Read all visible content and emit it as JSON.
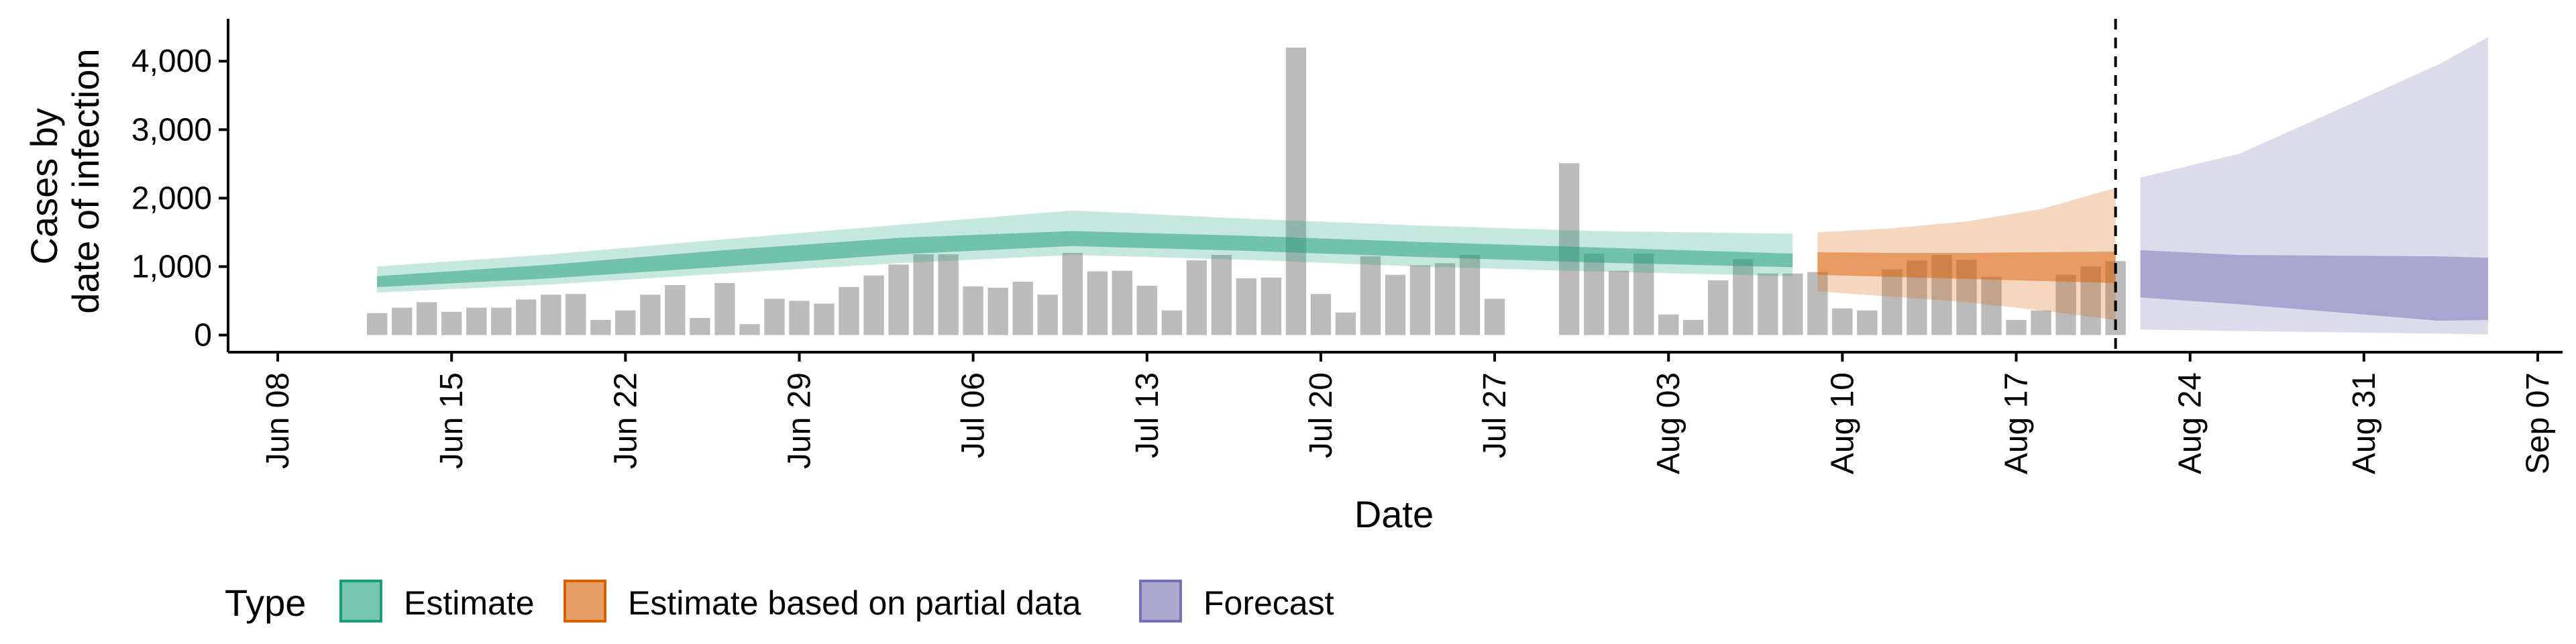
{
  "chart_data": {
    "type": "bar",
    "xlabel": "Date",
    "ylabel_lines": [
      "Cases by",
      "date of infection"
    ],
    "x_domain": [
      "2020-06-06",
      "2020-09-08"
    ],
    "ylim": [
      -250,
      4600
    ],
    "y_ticks": [
      {
        "value": 0,
        "label": "0"
      },
      {
        "value": 1000,
        "label": "1,000"
      },
      {
        "value": 2000,
        "label": "2,000"
      },
      {
        "value": 3000,
        "label": "3,000"
      },
      {
        "value": 4000,
        "label": "4,000"
      }
    ],
    "x_ticks": [
      {
        "date": "2020-06-08",
        "label": "Jun 08"
      },
      {
        "date": "2020-06-15",
        "label": "Jun 15"
      },
      {
        "date": "2020-06-22",
        "label": "Jun 22"
      },
      {
        "date": "2020-06-29",
        "label": "Jun 29"
      },
      {
        "date": "2020-07-06",
        "label": "Jul 06"
      },
      {
        "date": "2020-07-13",
        "label": "Jul 13"
      },
      {
        "date": "2020-07-20",
        "label": "Jul 20"
      },
      {
        "date": "2020-07-27",
        "label": "Jul 27"
      },
      {
        "date": "2020-08-03",
        "label": "Aug 03"
      },
      {
        "date": "2020-08-10",
        "label": "Aug 10"
      },
      {
        "date": "2020-08-17",
        "label": "Aug 17"
      },
      {
        "date": "2020-08-24",
        "label": "Aug 24"
      },
      {
        "date": "2020-08-31",
        "label": "Aug 31"
      },
      {
        "date": "2020-09-07",
        "label": "Sep 07"
      }
    ],
    "cutoff_date": "2020-08-21",
    "grid": false,
    "legend": {
      "title": "Type",
      "placement": "bottom",
      "items": [
        {
          "label": "Estimate",
          "color": "#1b9e77"
        },
        {
          "label": "Estimate based on partial data",
          "color": "#d95f02"
        },
        {
          "label": "Forecast",
          "color": "#7570b3"
        }
      ]
    },
    "bars": {
      "color": "#9e9e9e",
      "start_date": "2020-06-12",
      "values": [
        320,
        400,
        480,
        340,
        400,
        400,
        520,
        590,
        600,
        220,
        360,
        590,
        730,
        250,
        760,
        160,
        530,
        500,
        460,
        700,
        870,
        1030,
        1180,
        1180,
        710,
        690,
        780,
        590,
        1200,
        930,
        940,
        720,
        360,
        1090,
        1170,
        830,
        840,
        4200,
        600,
        330,
        1150,
        880,
        1020,
        1050,
        1170,
        530,
        0,
        0,
        2510,
        1190,
        940,
        1190,
        300,
        220,
        800,
        1110,
        900,
        900,
        920,
        390,
        360,
        960,
        1090,
        1170,
        1100,
        850,
        220,
        360,
        880,
        1000,
        1080
      ]
    },
    "series": [
      {
        "name": "Estimate",
        "color": "#1b9e77",
        "x": [
          "2020-06-12",
          "2020-06-19",
          "2020-06-26",
          "2020-07-03",
          "2020-07-10",
          "2020-07-17",
          "2020-07-24",
          "2020-07-31",
          "2020-08-08"
        ],
        "median": [
          780,
          930,
          1120,
          1300,
          1400,
          1340,
          1250,
          1170,
          1090
        ],
        "lower_50": [
          700,
          830,
          1000,
          1180,
          1300,
          1230,
          1140,
          1060,
          990
        ],
        "upper_50": [
          860,
          1030,
          1240,
          1420,
          1520,
          1450,
          1360,
          1280,
          1190
        ],
        "lower_90": [
          620,
          740,
          900,
          1050,
          1170,
          1100,
          1000,
          930,
          860
        ],
        "upper_90": [
          1000,
          1180,
          1400,
          1610,
          1820,
          1700,
          1600,
          1520,
          1480
        ]
      },
      {
        "name": "Estimate based on partial data",
        "color": "#d95f02",
        "x": [
          "2020-08-09",
          "2020-08-12",
          "2020-08-15",
          "2020-08-18",
          "2020-08-21"
        ],
        "median": [
          1050,
          1030,
          1010,
          990,
          970
        ],
        "lower_50": [
          880,
          850,
          820,
          790,
          760
        ],
        "upper_50": [
          1210,
          1200,
          1200,
          1210,
          1220
        ],
        "lower_90": [
          640,
          560,
          480,
          360,
          220
        ],
        "upper_90": [
          1500,
          1560,
          1660,
          1840,
          2150
        ]
      },
      {
        "name": "Forecast",
        "color": "#7570b3",
        "x": [
          "2020-08-22",
          "2020-08-26",
          "2020-08-30",
          "2020-09-03",
          "2020-09-05"
        ],
        "median": [
          900,
          800,
          720,
          650,
          660
        ],
        "lower_50": [
          550,
          450,
          330,
          210,
          220
        ],
        "upper_50": [
          1240,
          1170,
          1160,
          1150,
          1130
        ],
        "lower_90": [
          80,
          60,
          40,
          20,
          10
        ],
        "upper_90": [
          2300,
          2650,
          3300,
          3950,
          4350
        ]
      }
    ]
  }
}
